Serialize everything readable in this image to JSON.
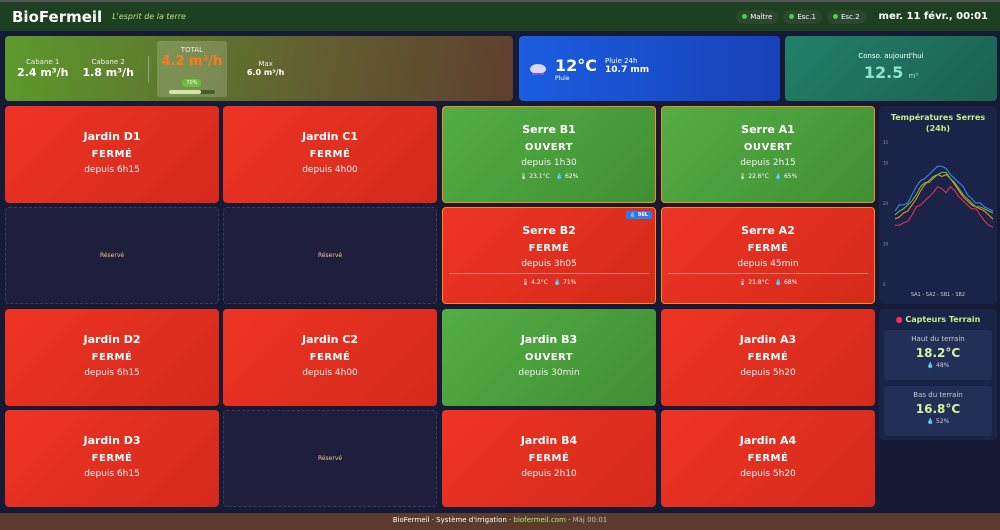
{
  "header": {
    "logo": "BioFermeil",
    "tagline": "L'esprit de la terre",
    "pills": [
      "Maître",
      "Esc.1",
      "Esc.2"
    ],
    "datetime": "mer. 11 févr., 00:01",
    "status_color": "#4cd04c"
  },
  "flow": {
    "cabane1_label": "Cabane 1",
    "cabane1_value": "2.4 m³/h",
    "cabane2_label": "Cabane 2",
    "cabane2_value": "1.8 m³/h",
    "total_label": "TOTAL",
    "total_value": "4.2 m³/h",
    "total_badge": "70%",
    "total_fill_pct": 70,
    "max_label": "Max",
    "max_value": "6.0 m³/h"
  },
  "weather": {
    "icon": "rain-cloud-icon",
    "temp": "12°C",
    "condition": "Pluie",
    "rain_label": "Pluie 24h",
    "rain_value": "10.7 mm"
  },
  "conso": {
    "label": "Conso. aujourd'hui",
    "value": "12.5",
    "unit": "m³"
  },
  "cards": [
    {
      "name": "Jardin D1",
      "status": "FERMÉ",
      "since": "depuis 6h15",
      "state": "closed"
    },
    {
      "name": "Jardin C1",
      "status": "FERMÉ",
      "since": "depuis 4h00",
      "state": "closed"
    },
    {
      "name": "Serre B1",
      "status": "OUVERT",
      "since": "depuis 1h30",
      "state": "open",
      "temp": "23.1°C",
      "hum": "62%"
    },
    {
      "name": "Serre A1",
      "status": "OUVERT",
      "since": "depuis 2h15",
      "state": "open",
      "temp": "22.6°C",
      "hum": "65%"
    },
    {
      "reserved": "Réservé"
    },
    {
      "reserved": "Réservé"
    },
    {
      "name": "Serre B2",
      "status": "FERMÉ",
      "since": "depuis 3h05",
      "state": "closed",
      "temp": "4.2°C",
      "hum": "71%",
      "badge": "96L"
    },
    {
      "name": "Serre A2",
      "status": "FERMÉ",
      "since": "depuis 45min",
      "state": "closed",
      "temp": "21.8°C",
      "hum": "68%"
    },
    {
      "name": "Jardin D2",
      "status": "FERMÉ",
      "since": "depuis 6h15",
      "state": "closed"
    },
    {
      "name": "Jardin C2",
      "status": "FERMÉ",
      "since": "depuis 4h00",
      "state": "closed"
    },
    {
      "name": "Jardin B3",
      "status": "OUVERT",
      "since": "depuis 30min",
      "state": "open"
    },
    {
      "name": "Jardin A3",
      "status": "FERMÉ",
      "since": "depuis 5h20",
      "state": "closed"
    },
    {
      "name": "Jardin D3",
      "status": "FERMÉ",
      "since": "depuis 6h15",
      "state": "closed"
    },
    {
      "reserved": "Réservé"
    },
    {
      "name": "Jardin B4",
      "status": "FERMÉ",
      "since": "depuis 2h10",
      "state": "closed"
    },
    {
      "name": "Jardin A4",
      "status": "FERMÉ",
      "since": "depuis 5h20",
      "state": "closed"
    }
  ],
  "chart_data": {
    "type": "line",
    "title": "Températures Serres (24h)",
    "legend_text": "SA1 - SA2 - SB1 - SB2",
    "yticks": [
      0,
      10,
      20,
      30,
      35
    ],
    "ylim": [
      0,
      35
    ],
    "series": [
      {
        "name": "SA1",
        "color": "#3b8cff",
        "values": [
          18,
          19.5,
          19.5,
          20,
          22,
          24,
          25.5,
          26,
          27,
          28,
          29,
          29,
          28.5,
          27,
          26,
          25,
          24,
          22,
          21,
          20,
          20,
          19,
          18.5,
          18
        ]
      },
      {
        "name": "SA2",
        "color": "#ff9a1a",
        "values": [
          16,
          16.5,
          17.5,
          18,
          19.5,
          21,
          23,
          24.5,
          25.5,
          26.5,
          27,
          26.5,
          27,
          26,
          24.5,
          23,
          21.5,
          20.5,
          19.5,
          19,
          18.5,
          18,
          17,
          16
        ]
      },
      {
        "name": "SB1",
        "color": "#6cc13a",
        "values": [
          17,
          18,
          18.5,
          19.5,
          20.5,
          22,
          24,
          25,
          25,
          26,
          27,
          27.5,
          27.5,
          26,
          25,
          23.5,
          22,
          21,
          20,
          19,
          19,
          18.5,
          18,
          17.5
        ]
      },
      {
        "name": "SB2",
        "color": "#ff2a5a",
        "values": [
          14.5,
          14.5,
          15,
          15.5,
          17,
          19,
          19.5,
          20.5,
          21.5,
          22.5,
          24,
          23.5,
          22.5,
          24,
          23,
          21.5,
          20.5,
          19.5,
          18.5,
          18.5,
          17,
          15.5,
          14.5,
          14
        ]
      }
    ]
  },
  "sensors": {
    "title": "Capteurs Terrain",
    "items": [
      {
        "label": "Haut du terrain",
        "temp": "18.2°C",
        "hum": "48%"
      },
      {
        "label": "Bas du terrain",
        "temp": "16.8°C",
        "hum": "52%"
      }
    ]
  },
  "footer": {
    "brand": "BioFermeil",
    "system": "Système d'irrigation",
    "link": "biofermeil.com",
    "updated": "Màj 00:01"
  }
}
